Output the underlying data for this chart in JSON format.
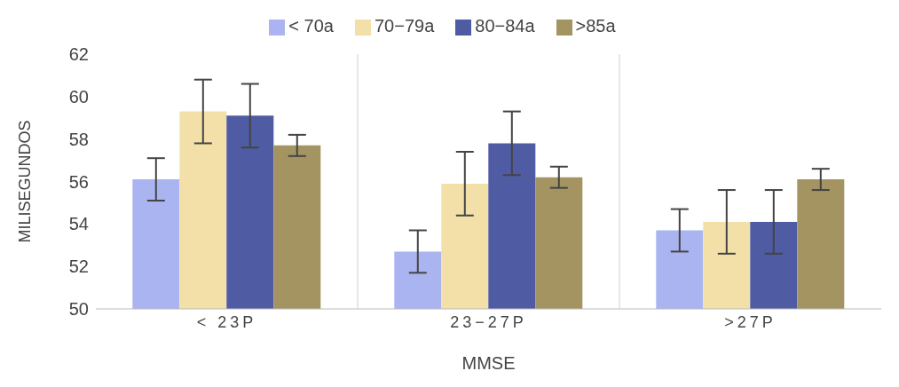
{
  "chart_data": {
    "type": "bar",
    "xlabel": "MMSE",
    "ylabel": "MILISEGUNDOS",
    "categories": [
      "< 23P",
      "23−27P",
      ">27P"
    ],
    "series": [
      {
        "name": "< 70a",
        "color": "#aab4f0",
        "values": [
          56.1,
          52.7,
          53.7
        ],
        "errors": [
          1.0,
          1.0,
          1.0
        ]
      },
      {
        "name": "70−79a",
        "color": "#f2e0a8",
        "values": [
          59.3,
          55.9,
          54.1
        ],
        "errors": [
          1.5,
          1.5,
          1.5
        ]
      },
      {
        "name": "80−84a",
        "color": "#4f5ba3",
        "values": [
          59.1,
          57.8,
          54.1
        ],
        "errors": [
          1.5,
          1.5,
          1.5
        ]
      },
      {
        "name": ">85a",
        "color": "#a39462",
        "values": [
          57.7,
          56.2,
          56.1
        ],
        "errors": [
          0.5,
          0.5,
          0.5
        ]
      }
    ],
    "ylim": [
      50,
      62
    ],
    "yticks": [
      50,
      52,
      54,
      56,
      58,
      60,
      62
    ],
    "grid": "x",
    "legend": "top"
  }
}
